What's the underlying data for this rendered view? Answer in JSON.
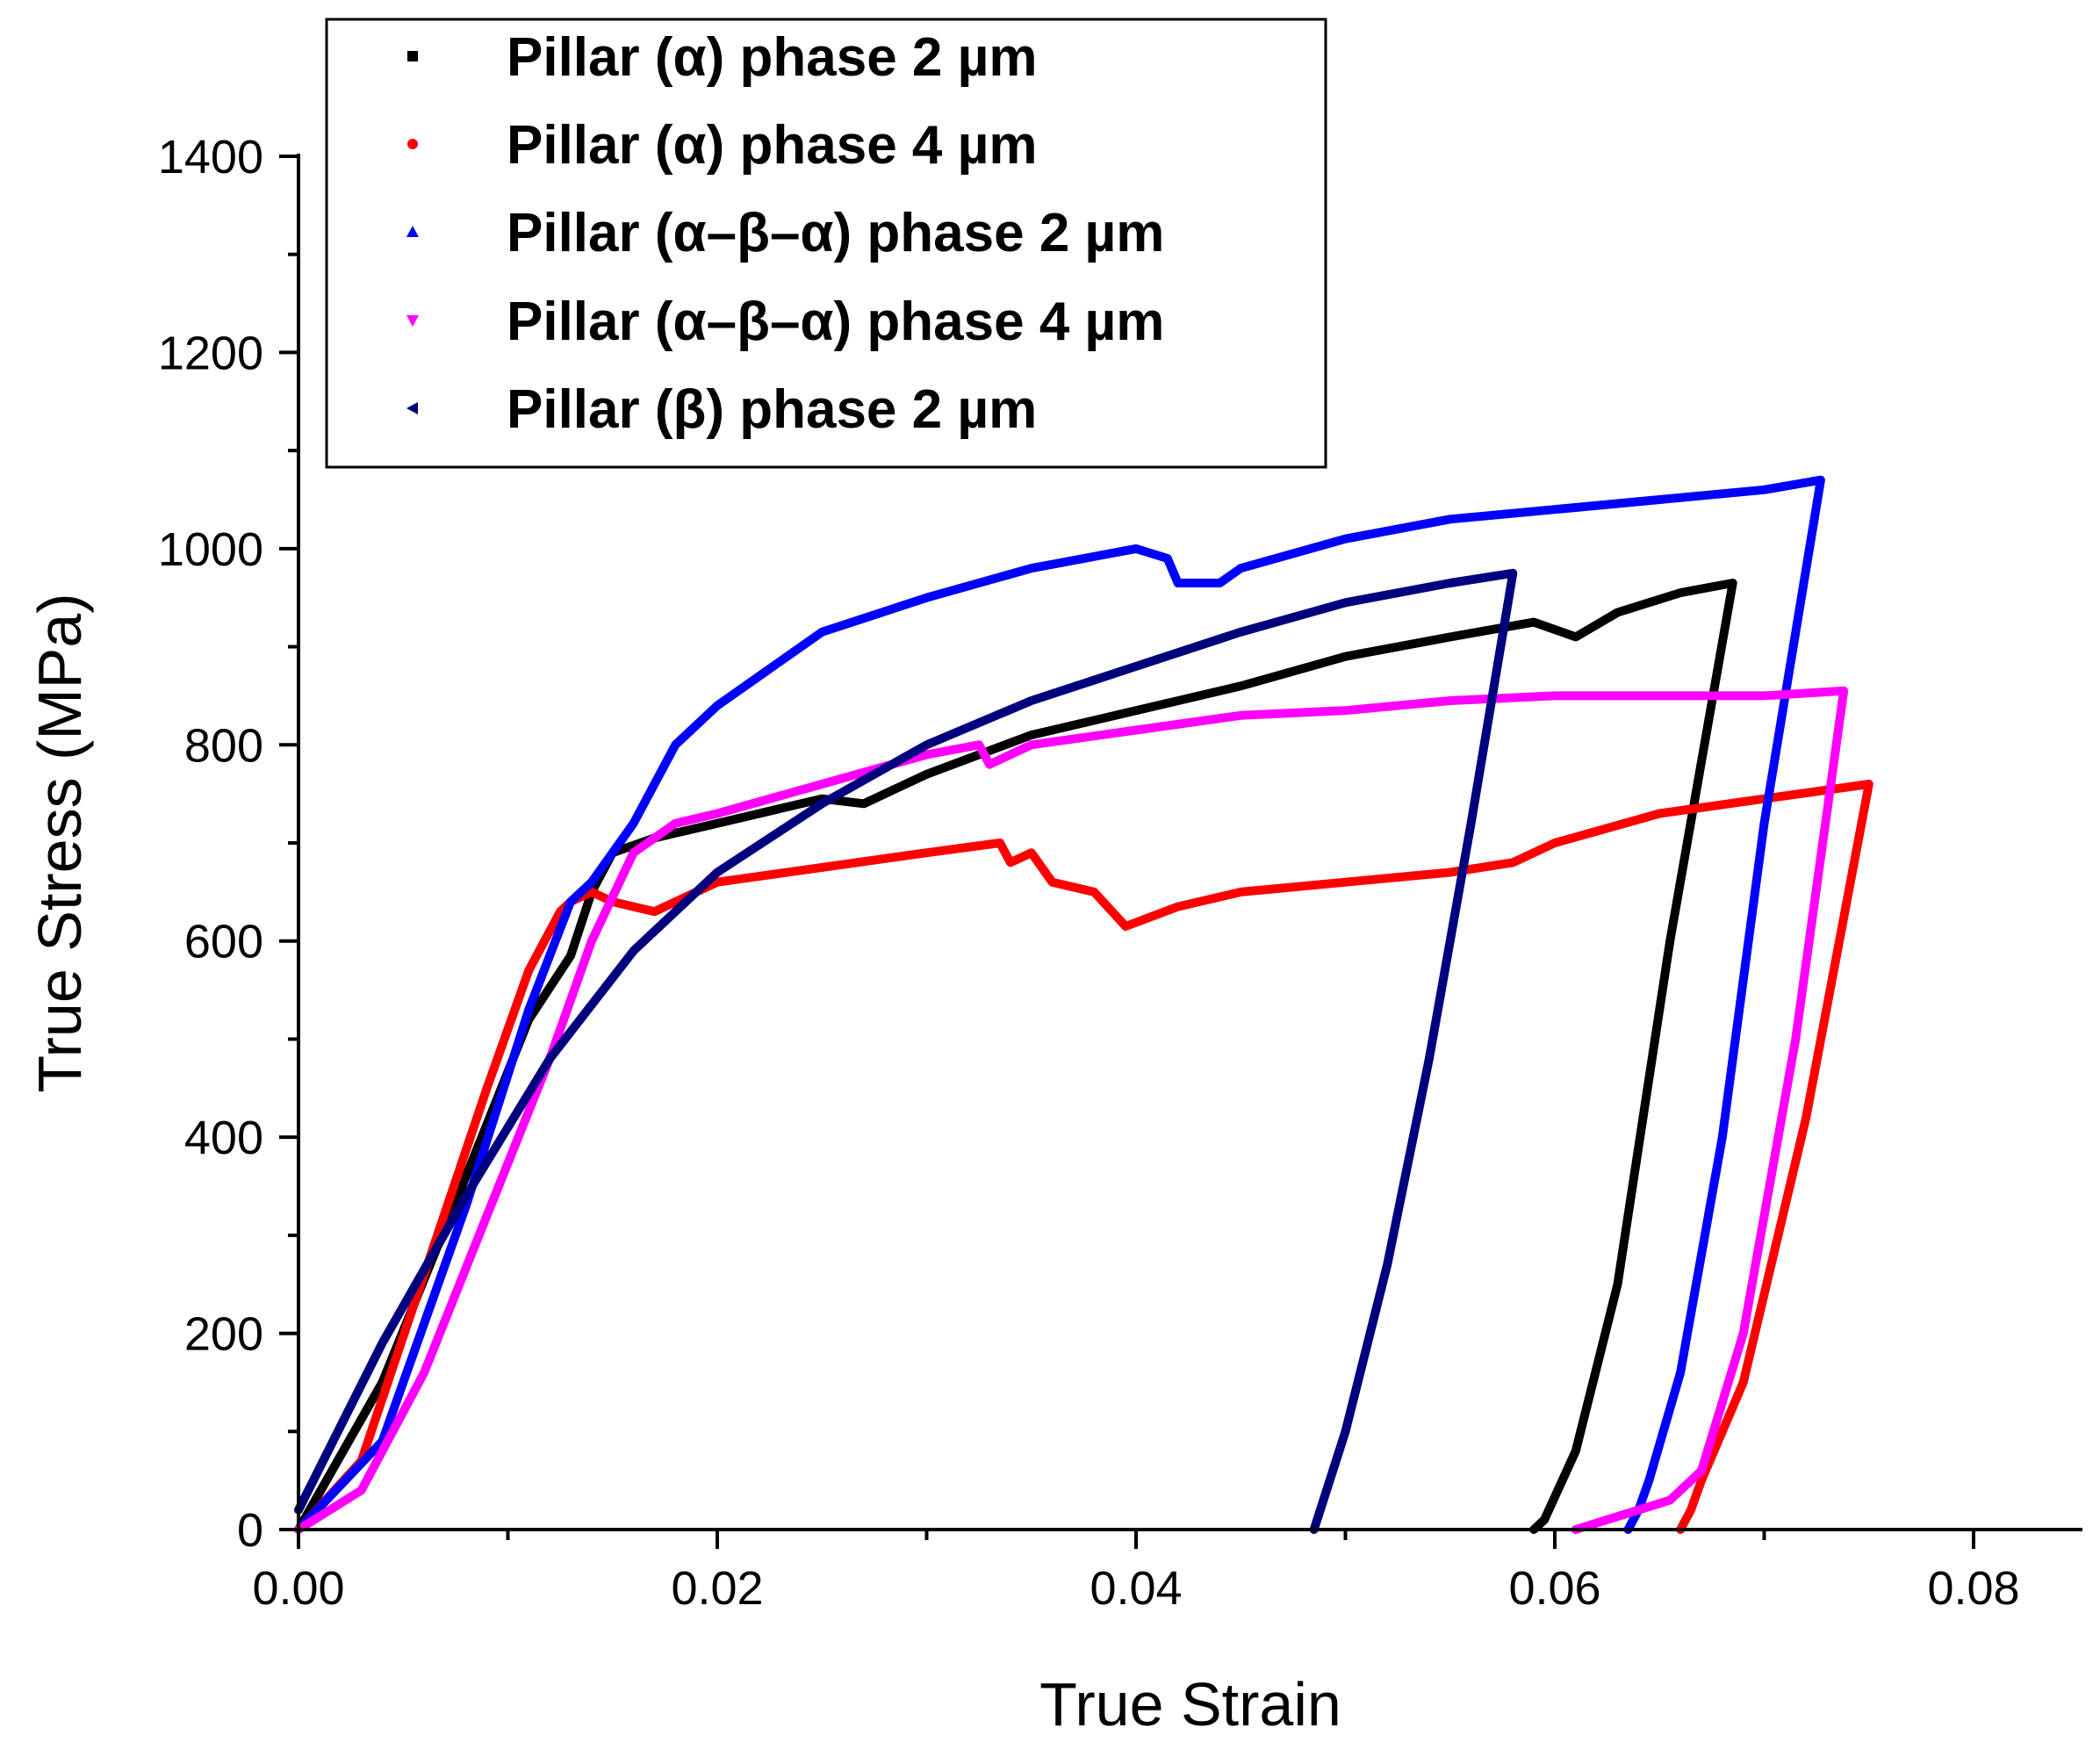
{
  "chart_data": {
    "type": "line",
    "title": "",
    "xlabel": "True Strain",
    "ylabel": "True Stress (MPa)",
    "xlim": [
      0,
      0.085
    ],
    "ylim": [
      0,
      1450
    ],
    "xticks": [
      0.0,
      0.02,
      0.04,
      0.06,
      0.08
    ],
    "xtick_labels": [
      "0.00",
      "0.02",
      "0.04",
      "0.06",
      "0.08"
    ],
    "yticks": [
      0,
      200,
      400,
      600,
      800,
      1000,
      1200,
      1400
    ],
    "ytick_labels": [
      "0",
      "200",
      "400",
      "600",
      "800",
      "1000",
      "1200",
      "1400"
    ],
    "grid": false,
    "legend_position": "top-left",
    "series": [
      {
        "name": "Pillar (α) phase 2 µm",
        "color": "#000000",
        "marker": "square",
        "x": [
          0.0,
          0.004,
          0.008,
          0.011,
          0.013,
          0.014,
          0.015,
          0.017,
          0.02,
          0.025,
          0.027,
          0.03,
          0.035,
          0.04,
          0.045,
          0.05,
          0.055,
          0.059,
          0.061,
          0.063,
          0.066,
          0.0685,
          0.0655,
          0.063,
          0.061,
          0.0595,
          0.059
        ],
        "y": [
          0,
          150,
          360,
          520,
          585,
          650,
          690,
          705,
          720,
          745,
          740,
          770,
          810,
          835,
          860,
          890,
          910,
          925,
          910,
          935,
          955,
          965,
          600,
          250,
          80,
          10,
          0
        ]
      },
      {
        "name": "Pillar (α) phase 4 µm",
        "color": "#ff0000",
        "marker": "circle",
        "x": [
          0.0,
          0.003,
          0.006,
          0.009,
          0.011,
          0.0125,
          0.013,
          0.014,
          0.015,
          0.017,
          0.02,
          0.025,
          0.03,
          0.0335,
          0.034,
          0.035,
          0.036,
          0.038,
          0.0395,
          0.042,
          0.045,
          0.05,
          0.055,
          0.058,
          0.06,
          0.065,
          0.07,
          0.075,
          0.072,
          0.069,
          0.067,
          0.0665,
          0.066
        ],
        "y": [
          0,
          70,
          260,
          450,
          570,
          630,
          640,
          650,
          640,
          630,
          660,
          675,
          690,
          700,
          680,
          690,
          660,
          650,
          615,
          635,
          650,
          660,
          670,
          680,
          700,
          730,
          745,
          760,
          420,
          150,
          50,
          20,
          0
        ]
      },
      {
        "name": "Pillar (α–β–α) phase 2 µm",
        "color": "#0000ff",
        "marker": "triangle-up",
        "x": [
          0.0,
          0.004,
          0.008,
          0.011,
          0.013,
          0.014,
          0.016,
          0.018,
          0.02,
          0.025,
          0.03,
          0.035,
          0.04,
          0.0415,
          0.042,
          0.044,
          0.045,
          0.05,
          0.055,
          0.06,
          0.065,
          0.07,
          0.0727,
          0.07,
          0.068,
          0.066,
          0.0645,
          0.064,
          0.0635
        ],
        "y": [
          0,
          90,
          330,
          530,
          640,
          660,
          720,
          800,
          840,
          915,
          950,
          980,
          1000,
          990,
          965,
          965,
          980,
          1010,
          1030,
          1040,
          1050,
          1060,
          1070,
          720,
          400,
          160,
          50,
          20,
          0
        ]
      },
      {
        "name": "Pillar (α–β–α) phase 4 µm",
        "color": "#ff00ff",
        "marker": "triangle-down",
        "x": [
          0.0,
          0.003,
          0.006,
          0.009,
          0.012,
          0.014,
          0.016,
          0.018,
          0.02,
          0.025,
          0.03,
          0.0325,
          0.033,
          0.035,
          0.04,
          0.045,
          0.05,
          0.055,
          0.06,
          0.065,
          0.07,
          0.0738,
          0.0715,
          0.069,
          0.067,
          0.0655,
          0.064,
          0.0625,
          0.061
        ],
        "y": [
          0,
          40,
          160,
          320,
          480,
          600,
          690,
          720,
          730,
          760,
          790,
          800,
          780,
          800,
          815,
          830,
          835,
          845,
          850,
          850,
          850,
          855,
          500,
          200,
          60,
          30,
          20,
          10,
          0
        ]
      },
      {
        "name": "Pillar (β) phase 2 µm",
        "color": "#00007f",
        "marker": "triangle-left",
        "x": [
          0.0,
          0.004,
          0.008,
          0.012,
          0.016,
          0.02,
          0.025,
          0.03,
          0.035,
          0.04,
          0.045,
          0.05,
          0.055,
          0.058,
          0.056,
          0.054,
          0.052,
          0.05,
          0.0485
        ],
        "y": [
          20,
          190,
          340,
          480,
          590,
          670,
          740,
          800,
          845,
          880,
          915,
          945,
          965,
          975,
          720,
          480,
          270,
          100,
          0
        ]
      }
    ]
  }
}
